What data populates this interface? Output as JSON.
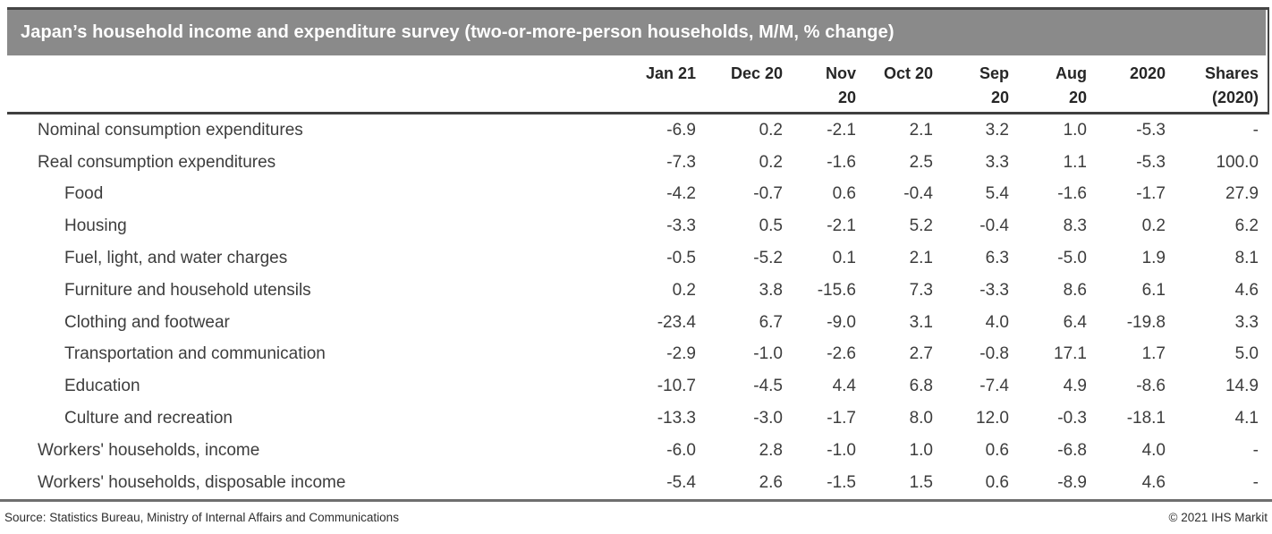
{
  "chart_data": {
    "type": "table",
    "title": "Japan’s household income and expenditure survey (two-or-more-person households, M/M, % change)",
    "columns": [
      "Jan 21",
      "Dec 20",
      "Nov\n20",
      "Oct 20",
      "Sep\n20",
      "Aug\n20",
      "2020",
      "Shares\n(2020)"
    ],
    "rows": [
      {
        "label": "Nominal consumption expenditures",
        "indent": 0,
        "values": [
          "-6.9",
          "0.2",
          "-2.1",
          "2.1",
          "3.2",
          "1.0",
          "-5.3",
          "-"
        ]
      },
      {
        "label": "Real consumption expenditures",
        "indent": 0,
        "values": [
          "-7.3",
          "0.2",
          "-1.6",
          "2.5",
          "3.3",
          "1.1",
          "-5.3",
          "100.0"
        ]
      },
      {
        "label": "Food",
        "indent": 1,
        "values": [
          "-4.2",
          "-0.7",
          "0.6",
          "-0.4",
          "5.4",
          "-1.6",
          "-1.7",
          "27.9"
        ]
      },
      {
        "label": "Housing",
        "indent": 1,
        "values": [
          "-3.3",
          "0.5",
          "-2.1",
          "5.2",
          "-0.4",
          "8.3",
          "0.2",
          "6.2"
        ]
      },
      {
        "label": "Fuel, light, and water charges",
        "indent": 1,
        "values": [
          "-0.5",
          "-5.2",
          "0.1",
          "2.1",
          "6.3",
          "-5.0",
          "1.9",
          "8.1"
        ]
      },
      {
        "label": "Furniture and household utensils",
        "indent": 1,
        "values": [
          "0.2",
          "3.8",
          "-15.6",
          "7.3",
          "-3.3",
          "8.6",
          "6.1",
          "4.6"
        ]
      },
      {
        "label": "Clothing and footwear",
        "indent": 1,
        "values": [
          "-23.4",
          "6.7",
          "-9.0",
          "3.1",
          "4.0",
          "6.4",
          "-19.8",
          "3.3"
        ]
      },
      {
        "label": "Transportation and communication",
        "indent": 1,
        "values": [
          "-2.9",
          "-1.0",
          "-2.6",
          "2.7",
          "-0.8",
          "17.1",
          "1.7",
          "5.0"
        ]
      },
      {
        "label": "Education",
        "indent": 1,
        "values": [
          "-10.7",
          "-4.5",
          "4.4",
          "6.8",
          "-7.4",
          "4.9",
          "-8.6",
          "14.9"
        ]
      },
      {
        "label": "Culture and recreation",
        "indent": 1,
        "values": [
          "-13.3",
          "-3.0",
          "-1.7",
          "8.0",
          "12.0",
          "-0.3",
          "-18.1",
          "4.1"
        ]
      },
      {
        "label": "Workers' households, income",
        "indent": 0,
        "values": [
          "-6.0",
          "2.8",
          "-1.0",
          "1.0",
          "0.6",
          "-6.8",
          "4.0",
          "-"
        ]
      },
      {
        "label": "Workers' households, disposable income",
        "indent": 0,
        "values": [
          "-5.4",
          "2.6",
          "-1.5",
          "1.5",
          "0.6",
          "-8.9",
          "4.6",
          "-"
        ]
      }
    ],
    "layout": {
      "legend": "none",
      "grid": "off"
    }
  },
  "footer": {
    "source": "Source: Statistics Bureau, Ministry of Internal Affairs and Communications",
    "copyright": "© 2021 IHS Markit"
  },
  "colors": {
    "title_bar_bg": "#8a8a8a",
    "title_text": "#ffffff",
    "rule_dark": "#454545",
    "header_rule": "#3f3f3f",
    "bottom_rule": "#6f6f6f",
    "body_text": "#3d3d3d"
  }
}
